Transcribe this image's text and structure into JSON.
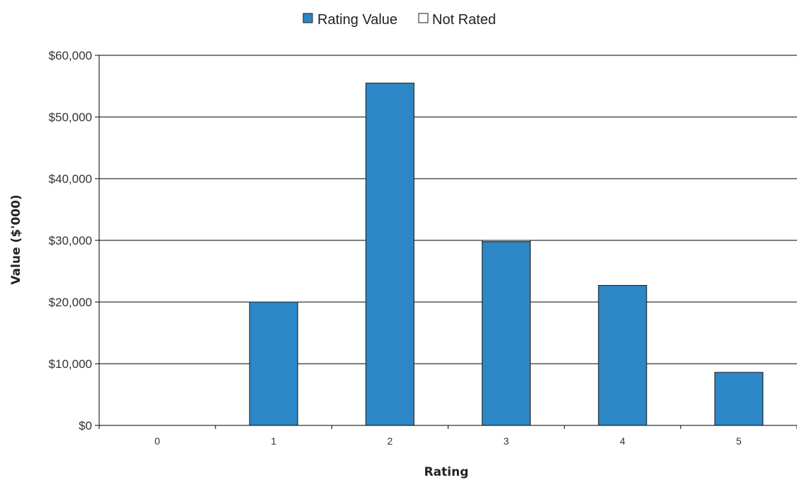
{
  "chart_data": {
    "type": "bar",
    "categories": [
      "0",
      "1",
      "2",
      "3",
      "4",
      "5"
    ],
    "series": [
      {
        "name": "Rating Value",
        "color": "#2d86c5",
        "values": [
          0,
          20000,
          55500,
          29800,
          22700,
          8600
        ]
      },
      {
        "name": "Not Rated",
        "color": "#ffffff",
        "values": [
          0,
          0,
          0,
          200,
          0,
          0
        ]
      }
    ],
    "xlabel": "Rating",
    "ylabel": "Value ($'000)",
    "ylim": [
      0,
      60000
    ],
    "yticks": [
      0,
      10000,
      20000,
      30000,
      40000,
      50000,
      60000
    ],
    "ytick_labels": [
      "$0",
      "$10,000",
      "$20,000",
      "$30,000",
      "$40,000",
      "$50,000",
      "$60,000"
    ],
    "grid": true,
    "legend_position": "top-center",
    "stacked": true
  }
}
